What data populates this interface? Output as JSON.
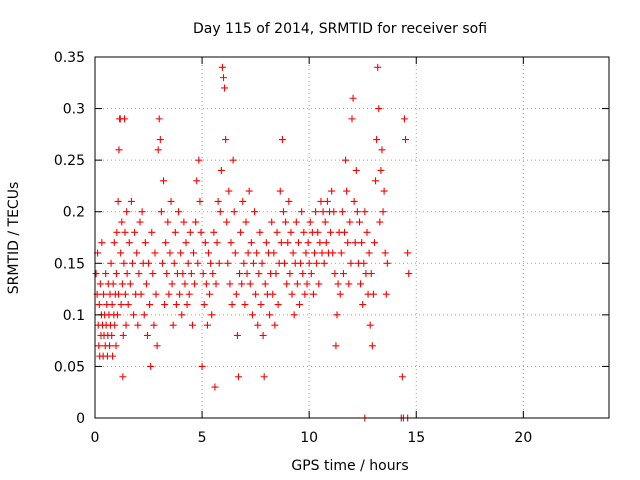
{
  "chart_data": {
    "type": "scatter",
    "title": "Day 115 of 2014, SRMTID for receiver sofi",
    "xlabel": "GPS time / hours",
    "ylabel": "SRMTID / TECUs",
    "xlim": [
      0,
      24
    ],
    "ylim": [
      0,
      0.35
    ],
    "xticks": [
      0,
      5,
      10,
      15,
      20
    ],
    "xtick_labels": [
      "0",
      "5",
      "10",
      "15",
      "20"
    ],
    "yticks": [
      0,
      0.05,
      0.1,
      0.15,
      0.2,
      0.25,
      0.3,
      0.35
    ],
    "ytick_labels": [
      "0",
      "0.05",
      "0.1",
      "0.15",
      "0.2",
      "0.25",
      "0.3",
      "0.35"
    ],
    "grid": true,
    "marker": "plus",
    "color": "#ff0000",
    "series": [
      {
        "points": [
          [
            0.05,
            0.14
          ],
          [
            0.1,
            0.12
          ],
          [
            0.12,
            0.16
          ],
          [
            0.15,
            0.09
          ],
          [
            0.18,
            0.07
          ],
          [
            0.2,
            0.11
          ],
          [
            0.22,
            0.06
          ],
          [
            0.25,
            0.13
          ],
          [
            0.28,
            0.08
          ],
          [
            0.3,
            0.1
          ],
          [
            0.32,
            0.17
          ],
          [
            0.35,
            0.09
          ],
          [
            0.38,
            0.06
          ],
          [
            0.4,
            0.12
          ],
          [
            0.42,
            0.08
          ],
          [
            0.45,
            0.1
          ],
          [
            0.48,
            0.07
          ],
          [
            0.5,
            0.14
          ],
          [
            0.52,
            0.09
          ],
          [
            0.55,
            0.11
          ],
          [
            0.58,
            0.06
          ],
          [
            0.6,
            0.08
          ],
          [
            0.62,
            0.13
          ],
          [
            0.65,
            0.1
          ],
          [
            0.68,
            0.07
          ],
          [
            0.7,
            0.12
          ],
          [
            0.72,
            0.09
          ],
          [
            0.75,
            0.15
          ],
          [
            0.78,
            0.08
          ],
          [
            0.8,
            0.11
          ],
          [
            0.82,
            0.06
          ],
          [
            0.85,
            0.13
          ],
          [
            0.88,
            0.1
          ],
          [
            0.9,
            0.17
          ],
          [
            0.92,
            0.09
          ],
          [
            0.95,
            0.12
          ],
          [
            0.98,
            0.07
          ],
          [
            1.0,
            0.14
          ],
          [
            1.02,
            0.18
          ],
          [
            1.05,
            0.1
          ],
          [
            1.08,
            0.21
          ],
          [
            1.1,
            0.12
          ],
          [
            1.12,
            0.26
          ],
          [
            1.15,
            0.29
          ],
          [
            1.18,
            0.29
          ],
          [
            1.2,
            0.16
          ],
          [
            1.22,
            0.11
          ],
          [
            1.25,
            0.19
          ],
          [
            1.28,
            0.13
          ],
          [
            1.3,
            0.04
          ],
          [
            1.32,
            0.08
          ],
          [
            1.35,
            0.15
          ],
          [
            1.38,
            0.29
          ],
          [
            1.4,
            0.18
          ],
          [
            1.42,
            0.12
          ],
          [
            1.45,
            0.09
          ],
          [
            1.48,
            0.2
          ],
          [
            1.5,
            0.14
          ],
          [
            1.55,
            0.11
          ],
          [
            1.6,
            0.17
          ],
          [
            1.65,
            0.13
          ],
          [
            1.7,
            0.21
          ],
          [
            1.75,
            0.15
          ],
          [
            1.8,
            0.1
          ],
          [
            1.85,
            0.18
          ],
          [
            1.9,
            0.12
          ],
          [
            1.95,
            0.16
          ],
          [
            2.0,
            0.09
          ],
          [
            2.05,
            0.14
          ],
          [
            2.1,
            0.19
          ],
          [
            2.15,
            0.12
          ],
          [
            2.2,
            0.2
          ],
          [
            2.25,
            0.15
          ],
          [
            2.3,
            0.1
          ],
          [
            2.35,
            0.17
          ],
          [
            2.4,
            0.13
          ],
          [
            2.45,
            0.08
          ],
          [
            2.5,
            0.15
          ],
          [
            2.55,
            0.11
          ],
          [
            2.6,
            0.05
          ],
          [
            2.65,
            0.18
          ],
          [
            2.7,
            0.14
          ],
          [
            2.75,
            0.09
          ],
          [
            2.8,
            0.16
          ],
          [
            2.85,
            0.12
          ],
          [
            2.9,
            0.07
          ],
          [
            2.95,
            0.26
          ],
          [
            3.0,
            0.29
          ],
          [
            3.05,
            0.27
          ],
          [
            3.1,
            0.2
          ],
          [
            3.15,
            0.15
          ],
          [
            3.2,
            0.23
          ],
          [
            3.25,
            0.11
          ],
          [
            3.3,
            0.17
          ],
          [
            3.35,
            0.14
          ],
          [
            3.4,
            0.19
          ],
          [
            3.45,
            0.12
          ],
          [
            3.5,
            0.16
          ],
          [
            3.55,
            0.21
          ],
          [
            3.6,
            0.13
          ],
          [
            3.65,
            0.09
          ],
          [
            3.7,
            0.15
          ],
          [
            3.75,
            0.18
          ],
          [
            3.8,
            0.11
          ],
          [
            3.85,
            0.14
          ],
          [
            3.9,
            0.2
          ],
          [
            3.95,
            0.12
          ],
          [
            4.0,
            0.16
          ],
          [
            4.05,
            0.1
          ],
          [
            4.1,
            0.14
          ],
          [
            4.15,
            0.19
          ],
          [
            4.2,
            0.13
          ],
          [
            4.25,
            0.17
          ],
          [
            4.3,
            0.11
          ],
          [
            4.35,
            0.15
          ],
          [
            4.4,
            0.12
          ],
          [
            4.45,
            0.18
          ],
          [
            4.5,
            0.14
          ],
          [
            4.55,
            0.09
          ],
          [
            4.6,
            0.16
          ],
          [
            4.65,
            0.13
          ],
          [
            4.7,
            0.19
          ],
          [
            4.75,
            0.23
          ],
          [
            4.8,
            0.15
          ],
          [
            4.85,
            0.25
          ],
          [
            4.9,
            0.21
          ],
          [
            4.95,
            0.18
          ],
          [
            5.0,
            0.05
          ],
          [
            5.05,
            0.14
          ],
          [
            5.1,
            0.11
          ],
          [
            5.15,
            0.17
          ],
          [
            5.2,
            0.13
          ],
          [
            5.25,
            0.09
          ],
          [
            5.3,
            0.16
          ],
          [
            5.35,
            0.12
          ],
          [
            5.4,
            0.15
          ],
          [
            5.45,
            0.1
          ],
          [
            5.5,
            0.14
          ],
          [
            5.55,
            0.18
          ],
          [
            5.6,
            0.03
          ],
          [
            5.65,
            0.13
          ],
          [
            5.7,
            0.17
          ],
          [
            5.75,
            0.21
          ],
          [
            5.8,
            0.15
          ],
          [
            5.85,
            0.2
          ],
          [
            5.9,
            0.24
          ],
          [
            5.95,
            0.34
          ],
          [
            6.0,
            0.33
          ],
          [
            6.05,
            0.32
          ],
          [
            6.1,
            0.27
          ],
          [
            6.15,
            0.19
          ],
          [
            6.2,
            0.15
          ],
          [
            6.25,
            0.22
          ],
          [
            6.3,
            0.13
          ],
          [
            6.35,
            0.17
          ],
          [
            6.4,
            0.11
          ],
          [
            6.45,
            0.25
          ],
          [
            6.5,
            0.2
          ],
          [
            6.55,
            0.16
          ],
          [
            6.6,
            0.12
          ],
          [
            6.65,
            0.08
          ],
          [
            6.7,
            0.04
          ],
          [
            6.75,
            0.14
          ],
          [
            6.8,
            0.18
          ],
          [
            6.85,
            0.13
          ],
          [
            6.9,
            0.21
          ],
          [
            6.95,
            0.15
          ],
          [
            7.0,
            0.11
          ],
          [
            7.05,
            0.19
          ],
          [
            7.1,
            0.14
          ],
          [
            7.15,
            0.16
          ],
          [
            7.2,
            0.22
          ],
          [
            7.25,
            0.13
          ],
          [
            7.3,
            0.17
          ],
          [
            7.35,
            0.1
          ],
          [
            7.4,
            0.15
          ],
          [
            7.45,
            0.2
          ],
          [
            7.5,
            0.12
          ],
          [
            7.55,
            0.16
          ],
          [
            7.6,
            0.09
          ],
          [
            7.65,
            0.14
          ],
          [
            7.7,
            0.18
          ],
          [
            7.75,
            0.11
          ],
          [
            7.8,
            0.15
          ],
          [
            7.85,
            0.08
          ],
          [
            7.9,
            0.04
          ],
          [
            7.95,
            0.13
          ],
          [
            8.0,
            0.17
          ],
          [
            8.05,
            0.12
          ],
          [
            8.1,
            0.16
          ],
          [
            8.15,
            0.1
          ],
          [
            8.2,
            0.14
          ],
          [
            8.25,
            0.19
          ],
          [
            8.3,
            0.12
          ],
          [
            8.35,
            0.16
          ],
          [
            8.4,
            0.09
          ],
          [
            8.45,
            0.14
          ],
          [
            8.5,
            0.18
          ],
          [
            8.55,
            0.11
          ],
          [
            8.6,
            0.15
          ],
          [
            8.65,
            0.22
          ],
          [
            8.7,
            0.17
          ],
          [
            8.75,
            0.27
          ],
          [
            8.8,
            0.2
          ],
          [
            8.85,
            0.15
          ],
          [
            8.9,
            0.19
          ],
          [
            8.95,
            0.13
          ],
          [
            9.0,
            0.17
          ],
          [
            9.05,
            0.21
          ],
          [
            9.1,
            0.14
          ],
          [
            9.15,
            0.18
          ],
          [
            9.2,
            0.12
          ],
          [
            9.25,
            0.16
          ],
          [
            9.3,
            0.1
          ],
          [
            9.35,
            0.15
          ],
          [
            9.4,
            0.19
          ],
          [
            9.45,
            0.13
          ],
          [
            9.5,
            0.17
          ],
          [
            9.55,
            0.11
          ],
          [
            9.6,
            0.15
          ],
          [
            9.65,
            0.2
          ],
          [
            9.7,
            0.14
          ],
          [
            9.75,
            0.18
          ],
          [
            9.8,
            0.12
          ],
          [
            9.85,
            0.16
          ],
          [
            9.9,
            0.13
          ],
          [
            9.95,
            0.17
          ],
          [
            10.0,
            0.15
          ],
          [
            10.05,
            0.19
          ],
          [
            10.1,
            0.14
          ],
          [
            10.15,
            0.18
          ],
          [
            10.2,
            0.12
          ],
          [
            10.25,
            0.16
          ],
          [
            10.3,
            0.2
          ],
          [
            10.35,
            0.15
          ],
          [
            10.4,
            0.18
          ],
          [
            10.45,
            0.13
          ],
          [
            10.5,
            0.17
          ],
          [
            10.55,
            0.21
          ],
          [
            10.6,
            0.16
          ],
          [
            10.65,
            0.2
          ],
          [
            10.7,
            0.15
          ],
          [
            10.75,
            0.19
          ],
          [
            10.8,
            0.17
          ],
          [
            10.85,
            0.21
          ],
          [
            10.9,
            0.16
          ],
          [
            10.95,
            0.2
          ],
          [
            11.0,
            0.18
          ],
          [
            11.05,
            0.22
          ],
          [
            11.1,
            0.16
          ],
          [
            11.15,
            0.2
          ],
          [
            11.2,
            0.14
          ],
          [
            11.25,
            0.07
          ],
          [
            11.3,
            0.1
          ],
          [
            11.35,
            0.13
          ],
          [
            11.4,
            0.18
          ],
          [
            11.45,
            0.12
          ],
          [
            11.5,
            0.16
          ],
          [
            11.55,
            0.2
          ],
          [
            11.6,
            0.14
          ],
          [
            11.65,
            0.18
          ],
          [
            11.7,
            0.25
          ],
          [
            11.75,
            0.22
          ],
          [
            11.8,
            0.17
          ],
          [
            11.85,
            0.13
          ],
          [
            11.9,
            0.19
          ],
          [
            11.95,
            0.15
          ],
          [
            12.0,
            0.29
          ],
          [
            12.05,
            0.31
          ],
          [
            12.1,
            0.21
          ],
          [
            12.15,
            0.17
          ],
          [
            12.2,
            0.24
          ],
          [
            12.25,
            0.2
          ],
          [
            12.3,
            0.15
          ],
          [
            12.35,
            0.19
          ],
          [
            12.4,
            0.13
          ],
          [
            12.45,
            0.17
          ],
          [
            12.5,
            0.11
          ],
          [
            12.55,
            0.15
          ],
          [
            12.6,
            0.2
          ],
          [
            12.65,
            0.14
          ],
          [
            12.7,
            0.18
          ],
          [
            12.75,
            0.12
          ],
          [
            12.8,
            0.16
          ],
          [
            12.85,
            0.09
          ],
          [
            12.9,
            0.14
          ],
          [
            12.95,
            0.07
          ],
          [
            13.0,
            0.12
          ],
          [
            13.05,
            0.17
          ],
          [
            13.1,
            0.23
          ],
          [
            13.15,
            0.27
          ],
          [
            13.2,
            0.34
          ],
          [
            13.25,
            0.3
          ],
          [
            13.3,
            0.19
          ],
          [
            13.35,
            0.24
          ],
          [
            13.4,
            0.26
          ],
          [
            13.45,
            0.2
          ],
          [
            13.5,
            0.22
          ],
          [
            13.55,
            0.16
          ],
          [
            13.6,
            0.12
          ],
          [
            13.65,
            0.15
          ],
          [
            14.35,
            0.04
          ],
          [
            14.45,
            0.29
          ],
          [
            14.5,
            0.27
          ],
          [
            14.6,
            0.16
          ],
          [
            14.65,
            0.14
          ],
          [
            12.6,
            0.0
          ],
          [
            14.3,
            0.0
          ],
          [
            14.4,
            0.0
          ],
          [
            14.6,
            0.0
          ]
        ]
      }
    ]
  }
}
